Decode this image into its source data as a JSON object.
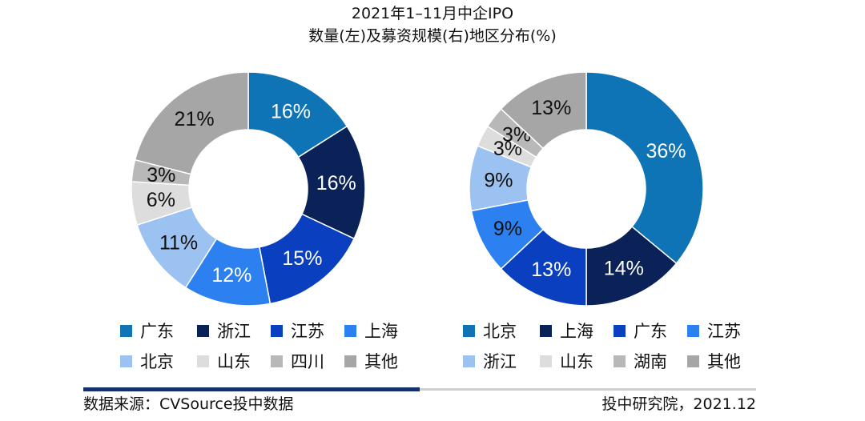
{
  "title": {
    "line1": "2021年1–11月中企IPO",
    "line2": "数量(左)及募资规模(右)地区分布(%)"
  },
  "chart_data": [
    {
      "type": "pie",
      "variant": "donut",
      "series": [
        {
          "values": [
            16,
            16,
            15,
            12,
            11,
            6,
            3,
            21
          ]
        }
      ],
      "categories": [
        "广东",
        "浙江",
        "江苏",
        "上海",
        "北京",
        "山东",
        "四川",
        "其他"
      ],
      "labels": [
        "16%",
        "16%",
        "15%",
        "12%",
        "11%",
        "6%",
        "3%",
        "21%"
      ],
      "colors": [
        "#0f74b5",
        "#0a2258",
        "#0a3fbf",
        "#2d80f0",
        "#9cc2f2",
        "#dddddd",
        "#b8b8b8",
        "#a6a6a6"
      ],
      "label_colors": [
        "#ffffff",
        "#ffffff",
        "#ffffff",
        "#ffffff",
        "#111111",
        "#111111",
        "#111111",
        "#111111"
      ],
      "legend_position": "bottom"
    },
    {
      "type": "pie",
      "variant": "donut",
      "series": [
        {
          "values": [
            36,
            14,
            13,
            9,
            9,
            3,
            3,
            13
          ]
        }
      ],
      "categories": [
        "北京",
        "上海",
        "广东",
        "江苏",
        "浙江",
        "山东",
        "湖南",
        "其他"
      ],
      "labels": [
        "36%",
        "14%",
        "13%",
        "9%",
        "9%",
        "3%",
        "3%",
        "13%"
      ],
      "colors": [
        "#0f74b5",
        "#0a2258",
        "#0a3fbf",
        "#2d80f0",
        "#9cc2f2",
        "#dddddd",
        "#b8b8b8",
        "#a6a6a6"
      ],
      "label_colors": [
        "#ffffff",
        "#ffffff",
        "#ffffff",
        "#111111",
        "#111111",
        "#111111",
        "#111111",
        "#111111"
      ],
      "legend_position": "bottom"
    }
  ],
  "footer": {
    "source": "数据来源：CVSource投中数据",
    "credit": "投中研究院，2021.12"
  }
}
